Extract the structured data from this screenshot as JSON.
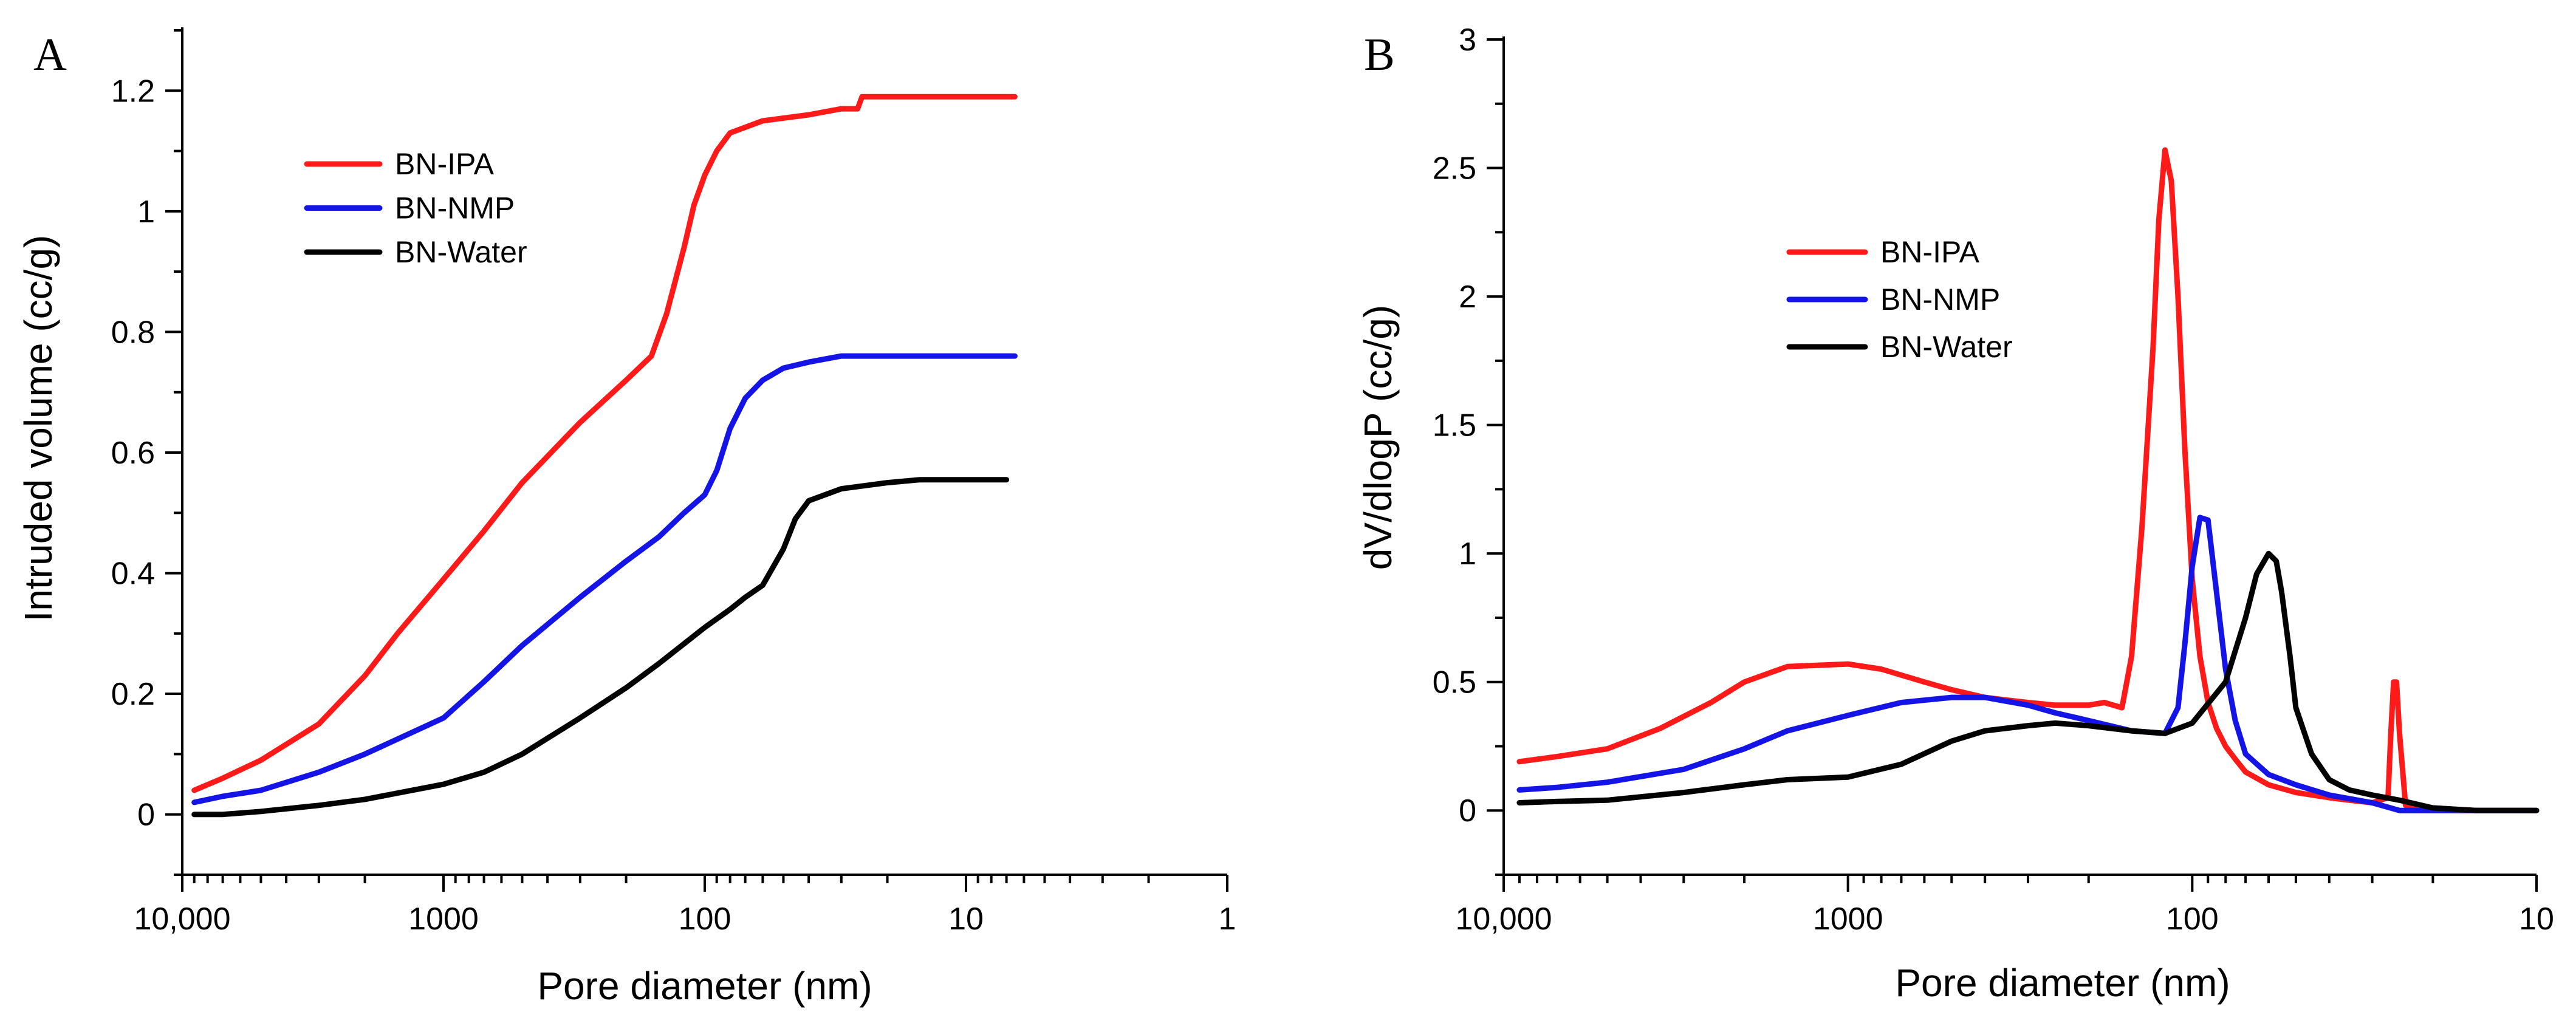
{
  "chart_data": [
    {
      "type": "line",
      "panel_label": "A",
      "xlabel": "Pore diameter (nm)",
      "ylabel": "Intruded volume (cc/g)",
      "x_scale": "log",
      "x_reversed": true,
      "xlim": [
        10000,
        1
      ],
      "ylim": [
        -0.1,
        1.3
      ],
      "x_ticks": [
        10000,
        1000,
        100,
        10,
        1
      ],
      "x_tick_labels": [
        "10,000",
        "1000",
        "100",
        "10",
        "1"
      ],
      "y_ticks": [
        0,
        0.2,
        0.4,
        0.6,
        0.8,
        1.0,
        1.2
      ],
      "y_tick_labels": [
        "0",
        "0.2",
        "0.4",
        "0.6",
        "0.8",
        "1",
        "1.2"
      ],
      "legend_position": "top-left",
      "series": [
        {
          "name": "BN-IPA",
          "color": "#ff1a1a",
          "x": [
            9000,
            7000,
            5000,
            3000,
            2000,
            1500,
            1000,
            700,
            500,
            300,
            200,
            160,
            140,
            120,
            110,
            100,
            90,
            80,
            60,
            40,
            30,
            26,
            25,
            20,
            15,
            10,
            6.5
          ],
          "y": [
            0.04,
            0.06,
            0.09,
            0.15,
            0.23,
            0.3,
            0.39,
            0.47,
            0.55,
            0.65,
            0.72,
            0.76,
            0.83,
            0.94,
            1.01,
            1.06,
            1.1,
            1.13,
            1.15,
            1.16,
            1.17,
            1.17,
            1.19,
            1.19,
            1.19,
            1.19,
            1.19
          ]
        },
        {
          "name": "BN-NMP",
          "color": "#1414e6",
          "x": [
            9000,
            7000,
            5000,
            3000,
            2000,
            1000,
            700,
            500,
            300,
            200,
            150,
            120,
            100,
            90,
            80,
            70,
            60,
            50,
            40,
            30,
            20,
            10,
            6.5
          ],
          "y": [
            0.02,
            0.03,
            0.04,
            0.07,
            0.1,
            0.16,
            0.22,
            0.28,
            0.36,
            0.42,
            0.46,
            0.5,
            0.53,
            0.57,
            0.64,
            0.69,
            0.72,
            0.74,
            0.75,
            0.76,
            0.76,
            0.76,
            0.76
          ]
        },
        {
          "name": "BN-Water",
          "color": "#000000",
          "x": [
            9000,
            7000,
            5000,
            3000,
            2000,
            1000,
            700,
            500,
            300,
            200,
            150,
            100,
            80,
            70,
            60,
            50,
            45,
            40,
            30,
            20,
            15,
            10,
            7
          ],
          "y": [
            0.0,
            0.0,
            0.005,
            0.015,
            0.025,
            0.05,
            0.07,
            0.1,
            0.16,
            0.21,
            0.25,
            0.31,
            0.34,
            0.36,
            0.38,
            0.44,
            0.49,
            0.52,
            0.54,
            0.55,
            0.555,
            0.555,
            0.555
          ]
        }
      ]
    },
    {
      "type": "line",
      "panel_label": "B",
      "xlabel": "Pore diameter (nm)",
      "ylabel": "dV/dlogP (cc/g)",
      "x_scale": "log",
      "x_reversed": true,
      "xlim": [
        10000,
        10
      ],
      "ylim": [
        -0.25,
        3.0
      ],
      "x_ticks": [
        10000,
        1000,
        100,
        10
      ],
      "x_tick_labels": [
        "10,000",
        "1000",
        "100",
        "10"
      ],
      "y_ticks": [
        0,
        0.5,
        1.0,
        1.5,
        2.0,
        2.5,
        3.0
      ],
      "y_tick_labels": [
        "0",
        "0.5",
        "1",
        "1.5",
        "2",
        "2.5",
        "3"
      ],
      "legend_position": "top-center",
      "series": [
        {
          "name": "BN-IPA",
          "color": "#ff1a1a",
          "x": [
            9000,
            7000,
            5000,
            3500,
            2500,
            2000,
            1500,
            1000,
            800,
            600,
            500,
            400,
            300,
            250,
            200,
            180,
            160,
            150,
            140,
            130,
            125,
            120,
            115,
            110,
            105,
            100,
            95,
            90,
            85,
            80,
            75,
            70,
            60,
            50,
            40,
            35,
            30,
            27,
            26.5,
            26,
            25.5,
            25,
            24,
            22,
            20,
            15,
            12,
            10
          ],
          "y": [
            0.19,
            0.21,
            0.24,
            0.32,
            0.42,
            0.5,
            0.56,
            0.57,
            0.55,
            0.5,
            0.47,
            0.44,
            0.42,
            0.41,
            0.41,
            0.42,
            0.4,
            0.6,
            1.1,
            1.8,
            2.3,
            2.57,
            2.45,
            2.0,
            1.4,
            0.9,
            0.6,
            0.42,
            0.32,
            0.25,
            0.2,
            0.15,
            0.1,
            0.07,
            0.05,
            0.04,
            0.03,
            0.05,
            0.3,
            0.5,
            0.5,
            0.3,
            0.02,
            0.02,
            0.01,
            0.0,
            0.0,
            0.0
          ],
          "line_end": 22
        },
        {
          "name": "BN-NMP",
          "color": "#1414e6",
          "x": [
            9000,
            7000,
            5000,
            3000,
            2000,
            1500,
            1000,
            700,
            500,
            400,
            300,
            250,
            200,
            150,
            120,
            110,
            105,
            100,
            95,
            90,
            85,
            80,
            75,
            70,
            60,
            50,
            40,
            30,
            25,
            20,
            15,
            10
          ],
          "y": [
            0.08,
            0.09,
            0.11,
            0.16,
            0.24,
            0.31,
            0.37,
            0.42,
            0.44,
            0.44,
            0.41,
            0.38,
            0.35,
            0.31,
            0.3,
            0.4,
            0.65,
            0.95,
            1.14,
            1.13,
            0.85,
            0.55,
            0.35,
            0.22,
            0.14,
            0.1,
            0.06,
            0.03,
            0.0,
            0.0,
            0.0,
            0.0
          ]
        },
        {
          "name": "BN-Water",
          "color": "#000000",
          "x": [
            9000,
            7000,
            5000,
            3000,
            2000,
            1500,
            1000,
            700,
            500,
            400,
            300,
            250,
            200,
            150,
            120,
            100,
            80,
            70,
            65,
            60,
            57,
            55,
            52,
            50,
            45,
            40,
            35,
            30,
            25,
            20,
            15,
            10
          ],
          "y": [
            0.03,
            0.035,
            0.04,
            0.07,
            0.1,
            0.12,
            0.13,
            0.18,
            0.27,
            0.31,
            0.33,
            0.34,
            0.33,
            0.31,
            0.3,
            0.34,
            0.5,
            0.75,
            0.92,
            1.0,
            0.97,
            0.85,
            0.6,
            0.4,
            0.22,
            0.12,
            0.08,
            0.06,
            0.04,
            0.01,
            0.0,
            0.0
          ]
        }
      ]
    }
  ]
}
